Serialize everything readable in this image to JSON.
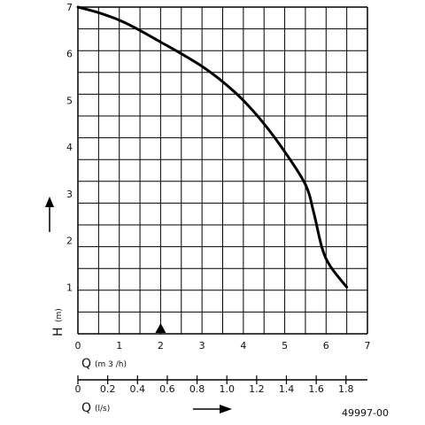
{
  "chart_data": {
    "type": "line",
    "x_axis": {
      "letter": "Q",
      "unit": "(m 3 /h)",
      "range": [
        0,
        7
      ],
      "ticks": [
        "0",
        "1",
        "2",
        "3",
        "4",
        "5",
        "6",
        "7"
      ]
    },
    "x2_axis": {
      "letter": "Q",
      "unit": "(l/s)",
      "range": [
        0,
        1.944
      ],
      "ticks": [
        "0",
        "0.2",
        "0.4",
        "0.6",
        "0.8",
        "1.0",
        "1.2",
        "1.4",
        "1.6",
        "1.8"
      ]
    },
    "y_axis": {
      "letter": "H",
      "unit": "(m)",
      "range": [
        0,
        7
      ],
      "ticks": [
        "1",
        "2",
        "3",
        "4",
        "5",
        "6",
        "7"
      ]
    },
    "grid": true,
    "series": [
      {
        "x": [
          0,
          0.5,
          1,
          1.5,
          2,
          2.5,
          3,
          3.5,
          4,
          4.5,
          5,
          5.5,
          5.7,
          5.9,
          6.1,
          6.5
        ],
        "y": [
          7.0,
          6.88,
          6.72,
          6.5,
          6.25,
          6.0,
          5.73,
          5.4,
          5.0,
          4.5,
          3.9,
          3.2,
          2.6,
          1.85,
          1.45,
          1.0
        ]
      }
    ],
    "reference_line": {
      "x": 2,
      "style": "dashed"
    },
    "marker": {
      "x": 2,
      "shape": "triangle-up"
    },
    "document_number": "49997-00"
  }
}
